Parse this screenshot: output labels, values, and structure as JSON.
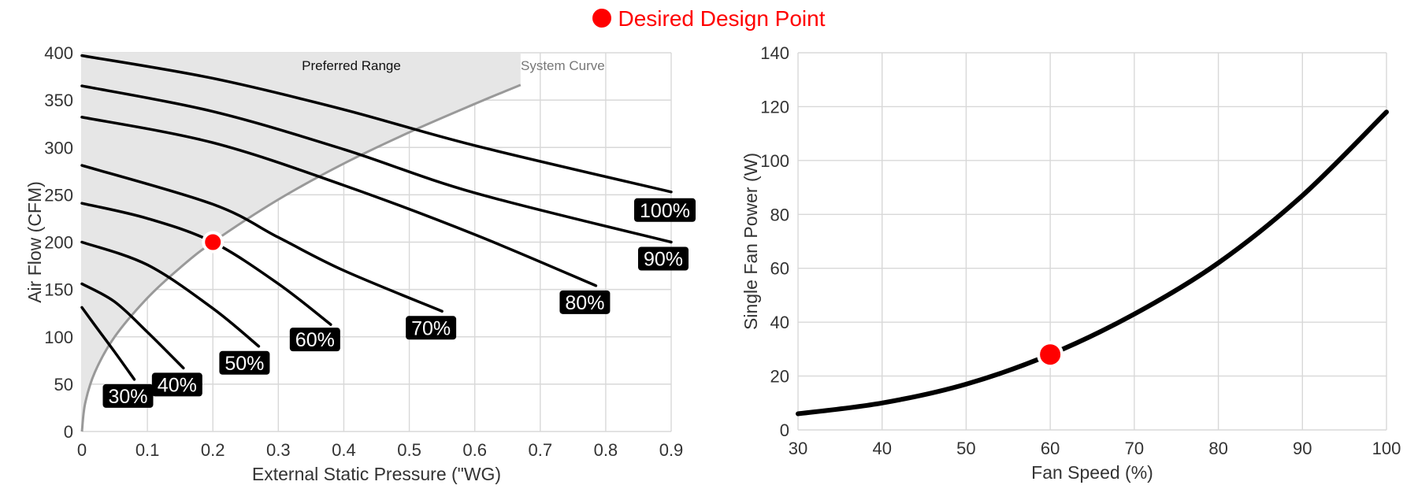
{
  "legend": {
    "label": "Desired Design Point",
    "color": "#ff0000"
  },
  "chart_data": [
    {
      "type": "line",
      "xlabel": "External Static Pressure (\"WG)",
      "ylabel": "Air Flow (CFM)",
      "xlim": [
        0,
        0.9
      ],
      "ylim": [
        0,
        400
      ],
      "xticks": [
        "0",
        "0.1",
        "0.2",
        "0.3",
        "0.4",
        "0.5",
        "0.6",
        "0.7",
        "0.8",
        "0.9"
      ],
      "yticks": [
        "0",
        "50",
        "100",
        "150",
        "200",
        "250",
        "300",
        "350",
        "400"
      ],
      "grid": true,
      "region_label": "Preferred Range",
      "system_curve": {
        "name": "System Curve",
        "x": [
          0,
          0.005,
          0.02,
          0.05,
          0.1,
          0.15,
          0.2,
          0.3,
          0.4,
          0.5,
          0.6,
          0.67
        ],
        "y": [
          0,
          30,
          63,
          100,
          141,
          173,
          200,
          245,
          283,
          316,
          346,
          366
        ]
      },
      "series": [
        {
          "name": "100%",
          "x": [
            0,
            0.2,
            0.4,
            0.6,
            0.9
          ],
          "y": [
            397,
            373,
            340,
            302,
            253
          ]
        },
        {
          "name": "90%",
          "x": [
            0,
            0.2,
            0.4,
            0.6,
            0.9
          ],
          "y": [
            365,
            338,
            298,
            252,
            200
          ]
        },
        {
          "name": "80%",
          "x": [
            0,
            0.2,
            0.4,
            0.6,
            0.785
          ],
          "y": [
            332,
            305,
            260,
            208,
            154
          ]
        },
        {
          "name": "70%",
          "x": [
            0,
            0.2,
            0.3,
            0.4,
            0.55
          ],
          "y": [
            281,
            240,
            205,
            170,
            127
          ]
        },
        {
          "name": "60%",
          "x": [
            0,
            0.1,
            0.2,
            0.3,
            0.38
          ],
          "y": [
            241,
            225,
            200,
            156,
            113
          ]
        },
        {
          "name": "50%",
          "x": [
            0,
            0.1,
            0.2,
            0.27
          ],
          "y": [
            200,
            176,
            130,
            90
          ]
        },
        {
          "name": "40%",
          "x": [
            0,
            0.05,
            0.1,
            0.155
          ],
          "y": [
            156,
            137,
            105,
            67
          ]
        },
        {
          "name": "30%",
          "x": [
            0,
            0.02,
            0.05,
            0.08
          ],
          "y": [
            131,
            112,
            84,
            55
          ]
        }
      ],
      "design_point": {
        "x": 0.2,
        "y": 200
      }
    },
    {
      "type": "line",
      "xlabel": "Fan Speed (%)",
      "ylabel": "Single Fan Power (W)",
      "xlim": [
        30,
        100
      ],
      "ylim": [
        0,
        140
      ],
      "xticks": [
        "30",
        "40",
        "50",
        "60",
        "70",
        "80",
        "90",
        "100"
      ],
      "yticks": [
        "0",
        "20",
        "40",
        "60",
        "80",
        "100",
        "120",
        "140"
      ],
      "grid": true,
      "series": [
        {
          "x": [
            30,
            40,
            50,
            60,
            70,
            80,
            90,
            100
          ],
          "y": [
            6,
            10,
            17,
            28,
            43,
            62,
            87,
            118
          ]
        }
      ],
      "design_point": {
        "x": 60,
        "y": 28
      }
    }
  ]
}
